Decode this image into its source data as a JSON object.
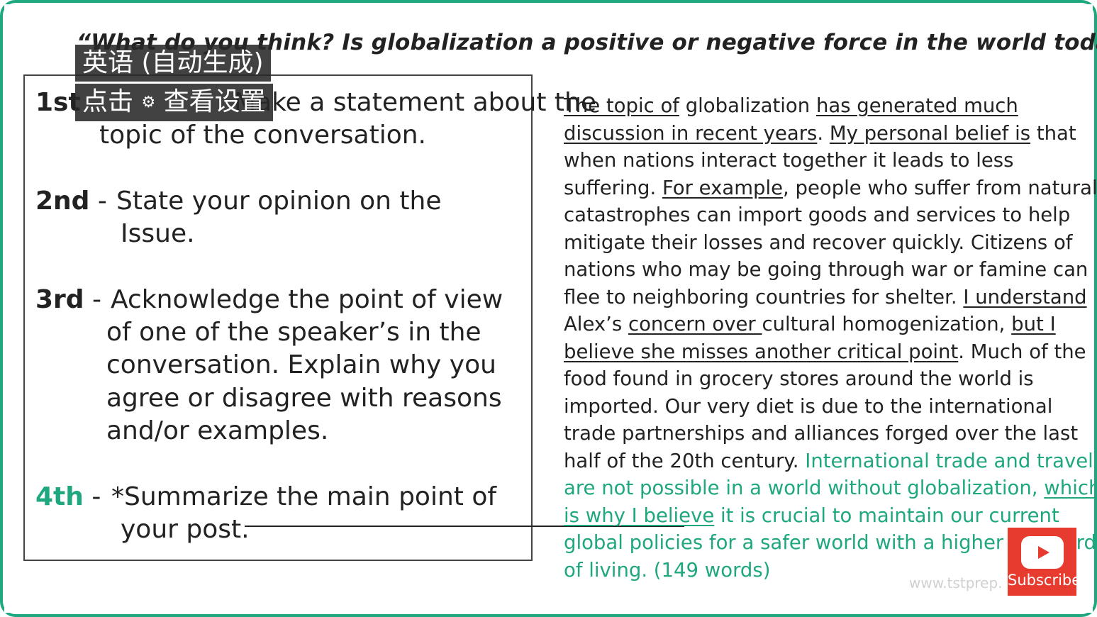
{
  "question": "“What do you think? Is globalization a positive or negative force in the world today?”",
  "steps": [
    {
      "num": "1st",
      "dash": " -",
      "lines": [
        "Make a statement about the",
        "topic of the conversation."
      ]
    },
    {
      "num": "2nd",
      "dash": " -",
      "lines": [
        "State your opinion on the",
        "Issue."
      ]
    },
    {
      "num": "3rd",
      "dash": " -",
      "lines": [
        "Acknowledge the point of view",
        "of one of the speaker’s in the",
        "conversation. Explain why you",
        "agree or disagree with reasons",
        "and/or examples."
      ]
    },
    {
      "num": "4th",
      "dash": " -",
      "lines": [
        "*Summarize the main point of",
        "your post."
      ]
    }
  ],
  "captions": {
    "language": "英语 (自动生成)",
    "click": "点击",
    "settings_icon": "gear-icon",
    "view_settings": "查看设置"
  },
  "essay": {
    "line1a": "The topic of",
    "line1b": " globalization ",
    "line1c": "has generated much",
    "line2a": "discussion in recent years",
    "line2b": ". ",
    "line2c": "My personal belief is",
    "line2d": " that",
    "line3": "when nations interact together it leads to less",
    "line4a": "suffering. ",
    "line4b": "For example",
    "line4c": ", people who suffer from natural",
    "line5": "catastrophes can import goods and services to help",
    "line6": "mitigate their losses and recover quickly. Citizens of",
    "line7": "nations who may be going through war or famine can",
    "line8a": "flee to neighboring countries for shelter. ",
    "line8b": "I understand",
    "line9a": "Alex’s ",
    "line9b": "concern over ",
    "line9c": "cultural homogenization, ",
    "line9d": "but I",
    "line10a": "believe she misses another critical point",
    "line10b": ". Much of the",
    "line11": "food found in grocery stores around the world is",
    "line12": "imported. Our very diet is due to the international",
    "line13": "trade partnerships and alliances forged over the last",
    "line14a": "half of the 20th century. ",
    "line14b": "International trade and travel",
    "line15a": "are not possible in a world without globalization, ",
    "line15b": "which",
    "line16a": "is why I believe",
    "line16b": " it is crucial to maintain our current",
    "line17": "global policies for a safer world with a higher standard",
    "line18": "of living. (149 words)"
  },
  "watermark": "www.tstprep.",
  "subscribe": {
    "label": "Subscribe",
    "icon": "youtube-play-icon"
  },
  "colors": {
    "accent": "#1fa77f",
    "subscribe": "#e63b2e"
  }
}
